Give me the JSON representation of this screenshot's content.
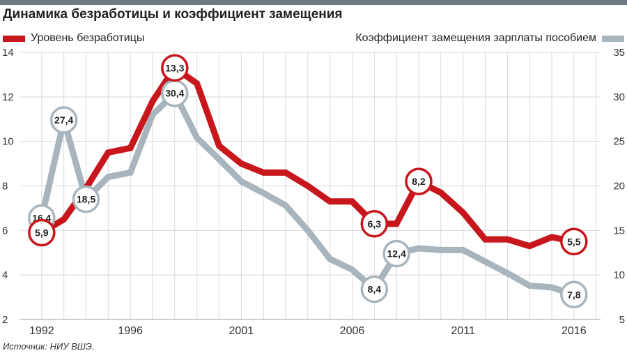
{
  "title": "Динамика безработицы и коэффициент замещения",
  "source": "Источник: НИУ ВШЭ.",
  "colors": {
    "unemployment": "#c8161d",
    "replacement": "#a9b5bd",
    "grid": "#d9d9d9",
    "topbar": "#6d7b86"
  },
  "chart_data": {
    "type": "line",
    "title": "Динамика безработицы и коэффициент замещения",
    "x_ticks": [
      "1992",
      "1996",
      "2001",
      "2006",
      "2011",
      "2016"
    ],
    "y_left": {
      "range": [
        2,
        14
      ],
      "ticks": [
        "2",
        "4",
        "6",
        "8",
        "10",
        "12",
        "14"
      ]
    },
    "y_right": {
      "range": [
        5,
        35
      ],
      "ticks": [
        "5",
        "10",
        "15",
        "20",
        "25",
        "30",
        "35"
      ]
    },
    "grid": true,
    "series": [
      {
        "name": "Уровень безработицы",
        "axis": "left",
        "x": [
          1992,
          1993,
          1994,
          1995,
          1996,
          1997,
          1998,
          1999,
          2000,
          2001,
          2002,
          2003,
          2004,
          2005,
          2006,
          2007,
          2008,
          2009,
          2010,
          2011,
          2012,
          2013,
          2014,
          2015,
          2016
        ],
        "values": [
          5.9,
          6.5,
          7.9,
          9.5,
          9.7,
          11.8,
          13.3,
          12.6,
          9.8,
          9.0,
          8.6,
          8.6,
          8.0,
          7.3,
          7.3,
          6.3,
          6.3,
          8.2,
          7.7,
          6.8,
          5.6,
          5.6,
          5.3,
          5.7,
          5.5
        ],
        "labels": [
          {
            "x": 1992,
            "text": "5,9"
          },
          {
            "x": 1998,
            "text": "13,3"
          },
          {
            "x": 2007,
            "text": "6,3"
          },
          {
            "x": 2009,
            "text": "8,2"
          },
          {
            "x": 2016,
            "text": "5,5"
          }
        ]
      },
      {
        "name": "Коэффициент замещения зарплаты пособием",
        "axis": "right",
        "x": [
          1992,
          1993,
          1994,
          1995,
          1996,
          1997,
          1998,
          1999,
          2000,
          2001,
          2002,
          2003,
          2004,
          2005,
          2006,
          2007,
          2008,
          2009,
          2010,
          2011,
          2012,
          2013,
          2014,
          2015,
          2016
        ],
        "values": [
          16.4,
          27.4,
          18.5,
          21.0,
          21.5,
          28.0,
          30.4,
          25.4,
          23.0,
          20.5,
          19.2,
          17.8,
          15.0,
          11.8,
          10.6,
          8.4,
          12.4,
          13.0,
          12.8,
          12.8,
          11.5,
          10.2,
          8.8,
          8.6,
          7.8
        ],
        "labels": [
          {
            "x": 1992,
            "text": "16,4"
          },
          {
            "x": 1993,
            "text": "27,4"
          },
          {
            "x": 1994,
            "text": "18,5"
          },
          {
            "x": 1998,
            "text": "30,4"
          },
          {
            "x": 2007,
            "text": "8,4"
          },
          {
            "x": 2008,
            "text": "12,4"
          },
          {
            "x": 2016,
            "text": "7,8"
          }
        ]
      }
    ]
  }
}
